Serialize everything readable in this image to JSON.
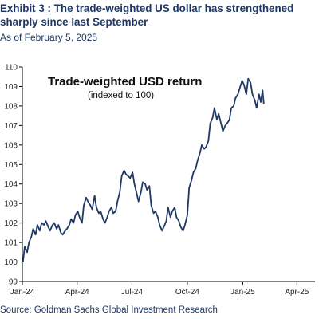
{
  "header": {
    "title": "Exhibit 3 : The trade-weighted US dollar has strengthened sharply since last September",
    "subtitle": "As of February 5, 2025"
  },
  "footer": {
    "source": "Source: Goldman Sachs Global Investment Research"
  },
  "chart_data": {
    "type": "line",
    "title": "Trade-weighted USD return",
    "subtitle": "(indexed to 100)",
    "xlabel": "",
    "ylabel": "",
    "ylim": [
      99,
      110
    ],
    "yticks": [
      99,
      100,
      101,
      102,
      103,
      104,
      105,
      106,
      107,
      108,
      109,
      110
    ],
    "xlim": [
      "2024-01-01",
      "2025-05-01"
    ],
    "xticks": [
      {
        "date": "2024-01-01",
        "label": "Jan-24"
      },
      {
        "date": "2024-04-01",
        "label": "Apr-24"
      },
      {
        "date": "2024-07-01",
        "label": "Jul-24"
      },
      {
        "date": "2024-10-01",
        "label": "Oct-24"
      },
      {
        "date": "2025-01-01",
        "label": "Jan-25"
      },
      {
        "date": "2025-04-01",
        "label": "Apr-25"
      }
    ],
    "grid": false,
    "legend": "none",
    "colors": {
      "line": "#1f3864",
      "axis": "#000000"
    },
    "series": [
      {
        "x": [
          "2024-01-02",
          "2024-01-05",
          "2024-01-09",
          "2024-01-12",
          "2024-01-16",
          "2024-01-19",
          "2024-01-23",
          "2024-01-26",
          "2024-01-30",
          "2024-02-02",
          "2024-02-06",
          "2024-02-09",
          "2024-02-13",
          "2024-02-16",
          "2024-02-20",
          "2024-02-23",
          "2024-02-27",
          "2024-03-01",
          "2024-03-05",
          "2024-03-08",
          "2024-03-12",
          "2024-03-15",
          "2024-03-19",
          "2024-03-22",
          "2024-03-26",
          "2024-03-29",
          "2024-04-02",
          "2024-04-05",
          "2024-04-09",
          "2024-04-12",
          "2024-04-16",
          "2024-04-19",
          "2024-04-23",
          "2024-04-26",
          "2024-04-30",
          "2024-05-03",
          "2024-05-07",
          "2024-05-10",
          "2024-05-14",
          "2024-05-17",
          "2024-05-21",
          "2024-05-24",
          "2024-05-28",
          "2024-05-31",
          "2024-06-04",
          "2024-06-07",
          "2024-06-11",
          "2024-06-14",
          "2024-06-18",
          "2024-06-21",
          "2024-06-25",
          "2024-06-28",
          "2024-07-02",
          "2024-07-05",
          "2024-07-09",
          "2024-07-12",
          "2024-07-16",
          "2024-07-19",
          "2024-07-23",
          "2024-07-26",
          "2024-07-30",
          "2024-08-02",
          "2024-08-06",
          "2024-08-09",
          "2024-08-13",
          "2024-08-16",
          "2024-08-20",
          "2024-08-23",
          "2024-08-27",
          "2024-08-30",
          "2024-09-03",
          "2024-09-06",
          "2024-09-10",
          "2024-09-13",
          "2024-09-17",
          "2024-09-20",
          "2024-09-24",
          "2024-09-27",
          "2024-10-01",
          "2024-10-04",
          "2024-10-08",
          "2024-10-11",
          "2024-10-15",
          "2024-10-18",
          "2024-10-22",
          "2024-10-25",
          "2024-10-29",
          "2024-11-01",
          "2024-11-05",
          "2024-11-08",
          "2024-11-12",
          "2024-11-15",
          "2024-11-19",
          "2024-11-22",
          "2024-11-26",
          "2024-11-29",
          "2024-12-03",
          "2024-12-06",
          "2024-12-10",
          "2024-12-13",
          "2024-12-17",
          "2024-12-20",
          "2024-12-24",
          "2024-12-27",
          "2024-12-31",
          "2025-01-03",
          "2025-01-07",
          "2025-01-10",
          "2025-01-14",
          "2025-01-17",
          "2025-01-21",
          "2025-01-24",
          "2025-01-28",
          "2025-01-31",
          "2025-02-03",
          "2025-02-05"
        ],
        "values": [
          100.0,
          100.8,
          100.5,
          101.0,
          101.3,
          101.7,
          101.4,
          101.9,
          101.6,
          102.0,
          101.9,
          102.1,
          101.8,
          101.6,
          101.9,
          102.0,
          101.7,
          101.9,
          101.5,
          101.4,
          101.6,
          101.7,
          101.9,
          102.2,
          102.0,
          102.4,
          102.6,
          102.3,
          102.0,
          102.9,
          103.3,
          103.1,
          102.9,
          102.7,
          103.4,
          102.8,
          102.5,
          102.6,
          102.2,
          102.0,
          102.3,
          102.6,
          102.8,
          102.5,
          102.6,
          103.1,
          103.6,
          104.4,
          104.7,
          104.5,
          104.4,
          104.3,
          104.6,
          104.0,
          103.5,
          103.1,
          103.6,
          104.1,
          104.0,
          103.7,
          103.9,
          102.9,
          102.5,
          102.6,
          102.3,
          101.9,
          101.6,
          101.8,
          102.1,
          102.8,
          102.3,
          102.6,
          102.8,
          102.3,
          102.1,
          101.8,
          101.6,
          101.9,
          102.4,
          103.8,
          104.2,
          104.6,
          104.8,
          105.2,
          105.6,
          106.0,
          105.8,
          105.9,
          106.2,
          107.1,
          107.4,
          107.9,
          107.3,
          107.6,
          107.1,
          106.7,
          107.0,
          107.1,
          107.3,
          107.9,
          108.0,
          108.4,
          108.6,
          108.9,
          109.3,
          109.1,
          108.6,
          109.4,
          109.2,
          108.6,
          108.3,
          107.9,
          108.6,
          108.2,
          108.8,
          108.1
        ]
      }
    ]
  }
}
